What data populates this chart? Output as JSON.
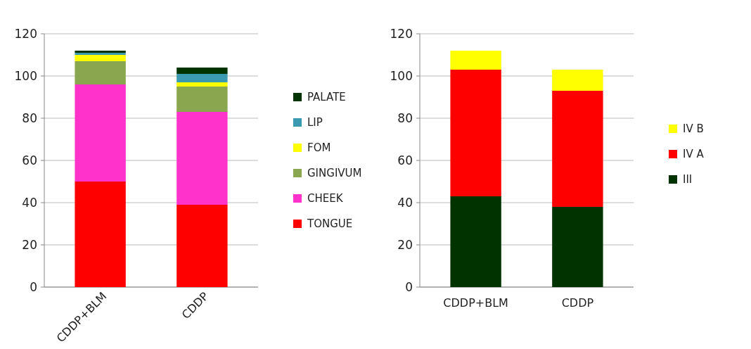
{
  "chart_data": [
    {
      "type": "bar",
      "stacked": true,
      "categories": [
        "CDDP+BLM",
        "CDDP"
      ],
      "series": [
        {
          "name": "TONGUE",
          "color": "#ff0000",
          "values": [
            50,
            39
          ]
        },
        {
          "name": "CHEEK",
          "color": "#ff33cc",
          "values": [
            46,
            44
          ]
        },
        {
          "name": "GINGIVUM",
          "color": "#8aa64e",
          "values": [
            11,
            12
          ]
        },
        {
          "name": "FOM",
          "color": "#ffff00",
          "values": [
            3,
            2
          ]
        },
        {
          "name": "LIP",
          "color": "#3c9ab0",
          "values": [
            1,
            4
          ]
        },
        {
          "name": "PALATE",
          "color": "#003300",
          "values": [
            1,
            3
          ]
        }
      ],
      "ylim": [
        0,
        120
      ],
      "yticks": [
        0,
        20,
        40,
        60,
        80,
        100,
        120
      ],
      "grid": "y",
      "legend": "right"
    },
    {
      "type": "bar",
      "stacked": true,
      "categories": [
        "CDDP+BLM",
        "CDDP"
      ],
      "series": [
        {
          "name": "III",
          "color": "#003300",
          "values": [
            43,
            38
          ]
        },
        {
          "name": "IV A",
          "color": "#ff0000",
          "values": [
            60,
            55
          ]
        },
        {
          "name": "IV B",
          "color": "#ffff00",
          "values": [
            9,
            10
          ]
        }
      ],
      "ylim": [
        0,
        120
      ],
      "yticks": [
        0,
        20,
        40,
        60,
        80,
        100,
        120
      ],
      "grid": "y",
      "legend": "right"
    }
  ]
}
